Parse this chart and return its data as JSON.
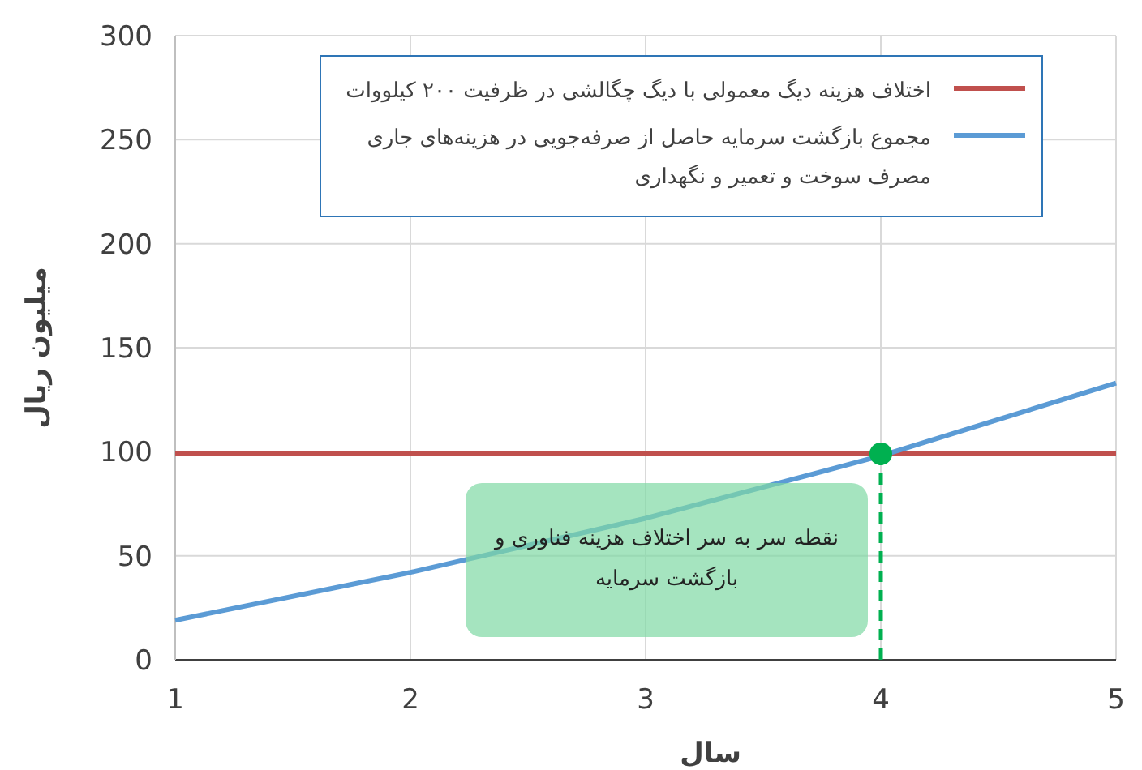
{
  "chart_data": {
    "type": "line",
    "xlabel": "سال",
    "ylabel": "میلیون ریال",
    "xlim": [
      1,
      5
    ],
    "xticks": [
      1,
      2,
      3,
      4,
      5
    ],
    "ylim": [
      0,
      300
    ],
    "yticks": [
      0,
      50,
      100,
      150,
      200,
      250,
      300
    ],
    "grid": true,
    "legend": "top",
    "series": [
      {
        "name": "اختلاف هزینه دیگ معمولی با دیگ چگالشی در ظرفیت ۲۰۰ کیلووات",
        "color": "#c0504d",
        "x": [
          1,
          5
        ],
        "values": [
          99,
          99
        ]
      },
      {
        "name": "مجموع بازگشت سرمایه حاصل از صرفه‌جویی در هزینه‌های جاری مصرف سوخت و تعمیر و نگهداری",
        "color": "#5b9bd5",
        "x": [
          1,
          2,
          3,
          4,
          5
        ],
        "values": [
          19,
          42,
          68,
          98,
          133
        ]
      },
      {
        "type": "line",
        "color": "#00b050",
        "line_style": "dashed",
        "x": [
          4,
          4
        ],
        "values": [
          0,
          99
        ]
      },
      {
        "type": "scatter",
        "color": "#00b050",
        "marker": "circle",
        "x": [
          4
        ],
        "values": [
          99
        ]
      }
    ],
    "annotations": [
      "نقطه سر به سر اختلاف هزینه فناوری و بازگشت سرمایه"
    ]
  }
}
